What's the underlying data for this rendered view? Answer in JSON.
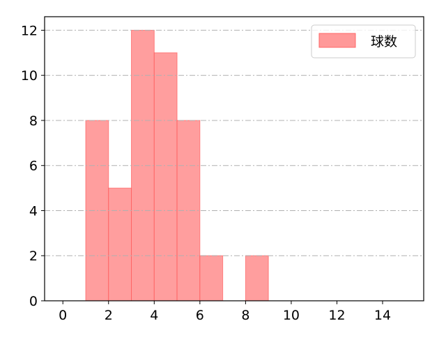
{
  "chart_data": {
    "type": "bar",
    "subtype": "histogram",
    "bins": [
      [
        1,
        2
      ],
      [
        2,
        3
      ],
      [
        3,
        4
      ],
      [
        4,
        5
      ],
      [
        5,
        6
      ],
      [
        6,
        7
      ],
      [
        8,
        9
      ]
    ],
    "values": [
      8,
      5,
      12,
      11,
      8,
      2,
      2
    ],
    "xlim": [
      -0.8,
      15.8
    ],
    "ylim": [
      0,
      12.6
    ],
    "xticks": [
      0,
      2,
      4,
      6,
      8,
      10,
      12,
      14
    ],
    "yticks": [
      0,
      2,
      4,
      6,
      8,
      10,
      12
    ],
    "xlabel": "",
    "ylabel": "",
    "title": "",
    "grid": {
      "axis": "y",
      "style": "dash-dot",
      "color": "#b0b0b0"
    },
    "legend": {
      "position": "top-right",
      "entries": [
        "球数"
      ]
    },
    "series": [
      {
        "name": "球数",
        "color": "#ff9999",
        "edge_color": "#ff4d4d"
      }
    ]
  }
}
